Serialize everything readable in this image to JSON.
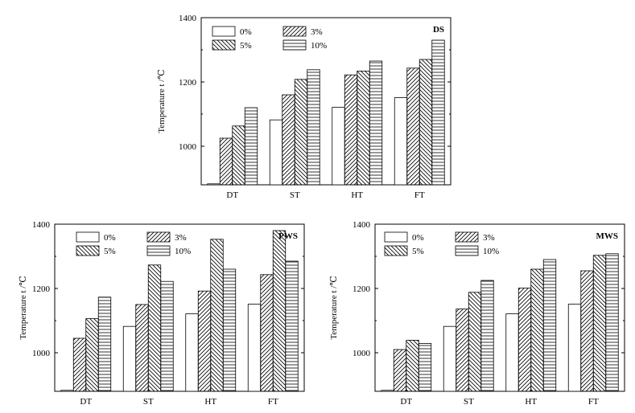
{
  "chart_data": [
    {
      "type": "bar",
      "title": "DS",
      "ylabel": "Temperature   t /℃",
      "xlabel": "",
      "categories": [
        "DT",
        "ST",
        "HT",
        "FT"
      ],
      "ylim": [
        880,
        1400
      ],
      "yticks": [
        "1000",
        "1200",
        "1400"
      ],
      "legend": "top-left",
      "series": [
        {
          "name": "0%",
          "pattern": "none",
          "values": [
            883,
            1082,
            1121,
            1151
          ]
        },
        {
          "name": "3%",
          "pattern": "hatch-right",
          "values": [
            1025,
            1160,
            1222,
            1243
          ]
        },
        {
          "name": "5%",
          "pattern": "hatch-left",
          "values": [
            1063,
            1208,
            1234,
            1270
          ]
        },
        {
          "name": "10%",
          "pattern": "horizontal",
          "values": [
            1120,
            1238,
            1265,
            1330
          ]
        }
      ]
    },
    {
      "type": "bar",
      "title": "PWS",
      "ylabel": "Temperature   t /℃",
      "xlabel": "",
      "categories": [
        "DT",
        "ST",
        "HT",
        "FT"
      ],
      "ylim": [
        880,
        1400
      ],
      "yticks": [
        "1000",
        "1200",
        "1400"
      ],
      "legend": "top-left",
      "series": [
        {
          "name": "0%",
          "pattern": "none",
          "values": [
            883,
            1082,
            1121,
            1151
          ]
        },
        {
          "name": "3%",
          "pattern": "hatch-right",
          "values": [
            1045,
            1150,
            1192,
            1243
          ]
        },
        {
          "name": "5%",
          "pattern": "hatch-left",
          "values": [
            1106,
            1273,
            1353,
            1380
          ]
        },
        {
          "name": "10%",
          "pattern": "horizontal",
          "values": [
            1173,
            1222,
            1260,
            1285
          ]
        }
      ]
    },
    {
      "type": "bar",
      "title": "MWS",
      "ylabel": "Temperature   t /℃",
      "xlabel": "",
      "categories": [
        "DT",
        "ST",
        "HT",
        "FT"
      ],
      "ylim": [
        880,
        1400
      ],
      "yticks": [
        "1000",
        "1200",
        "1400"
      ],
      "legend": "top-left",
      "series": [
        {
          "name": "0%",
          "pattern": "none",
          "values": [
            883,
            1082,
            1121,
            1151
          ]
        },
        {
          "name": "3%",
          "pattern": "hatch-right",
          "values": [
            1010,
            1136,
            1201,
            1255
          ]
        },
        {
          "name": "5%",
          "pattern": "hatch-left",
          "values": [
            1039,
            1188,
            1260,
            1303
          ]
        },
        {
          "name": "10%",
          "pattern": "horizontal",
          "values": [
            1029,
            1225,
            1290,
            1308
          ]
        }
      ]
    }
  ]
}
